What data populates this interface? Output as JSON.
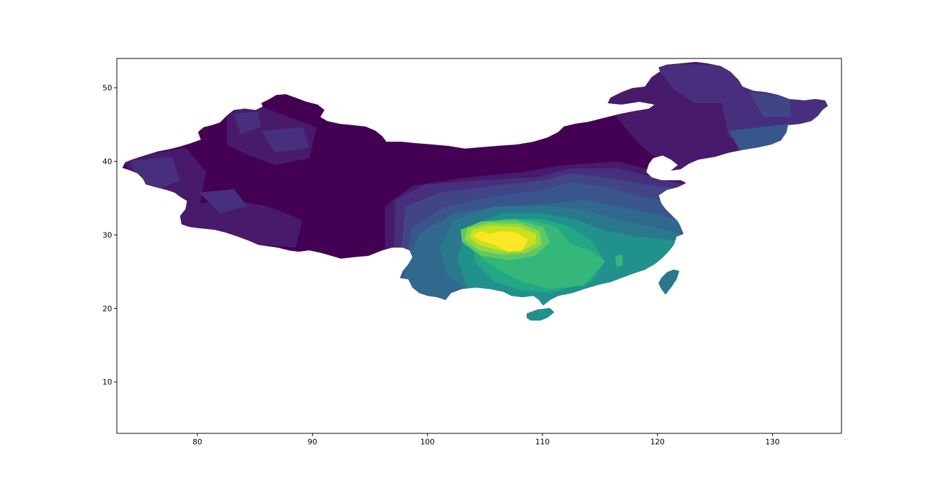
{
  "chart_data": {
    "type": "heatmap",
    "title": "",
    "xlabel": "",
    "ylabel": "",
    "xlim": [
      73,
      136
    ],
    "ylim": [
      3,
      54
    ],
    "x_ticks": [
      80,
      90,
      100,
      110,
      120,
      130
    ],
    "y_ticks": [
      10,
      20,
      30,
      40,
      50
    ],
    "grid": false,
    "colormap": "viridis",
    "colors": {
      "level0": "#440154",
      "level1": "#481a6c",
      "level2": "#472f7d",
      "level3": "#414487",
      "level4": "#39568c",
      "level5": "#31688e",
      "level6": "#2a788e",
      "level7": "#21918c",
      "level8": "#22a884",
      "level9": "#35b779",
      "level10": "#5ec962",
      "level11": "#90d743",
      "level12": "#c8e020",
      "level13": "#fde725"
    },
    "peak_region": {
      "lon": 106,
      "lat": 29.5,
      "level": "level13"
    }
  }
}
